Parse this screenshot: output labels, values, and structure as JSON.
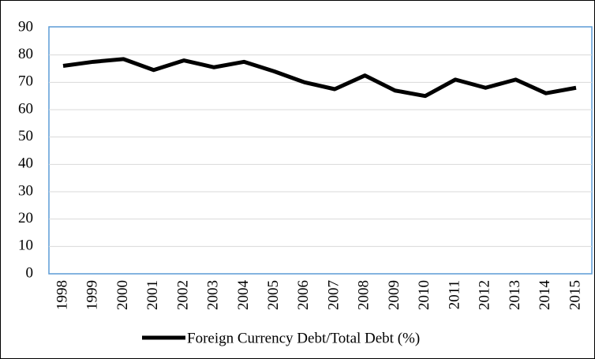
{
  "chart_data": {
    "type": "line",
    "categories": [
      "1998",
      "1999",
      "2000",
      "2001",
      "2002",
      "2003",
      "2004",
      "2005",
      "2006",
      "2007",
      "2008",
      "2009",
      "2010",
      "2011",
      "2012",
      "2013",
      "2014",
      "2015"
    ],
    "series": [
      {
        "name": "Foreign Currency Debt/Total Debt (%)",
        "color": "#000000",
        "values": [
          76,
          77.5,
          78.5,
          74.5,
          78,
          75.5,
          77.5,
          74,
          70,
          67.5,
          72.5,
          67,
          65,
          71,
          68,
          71,
          66,
          68
        ]
      }
    ],
    "ylim": [
      0,
      90
    ],
    "yticks": [
      0,
      10,
      20,
      30,
      40,
      50,
      60,
      70,
      80,
      90
    ],
    "grid": true,
    "legend": "bottom"
  }
}
